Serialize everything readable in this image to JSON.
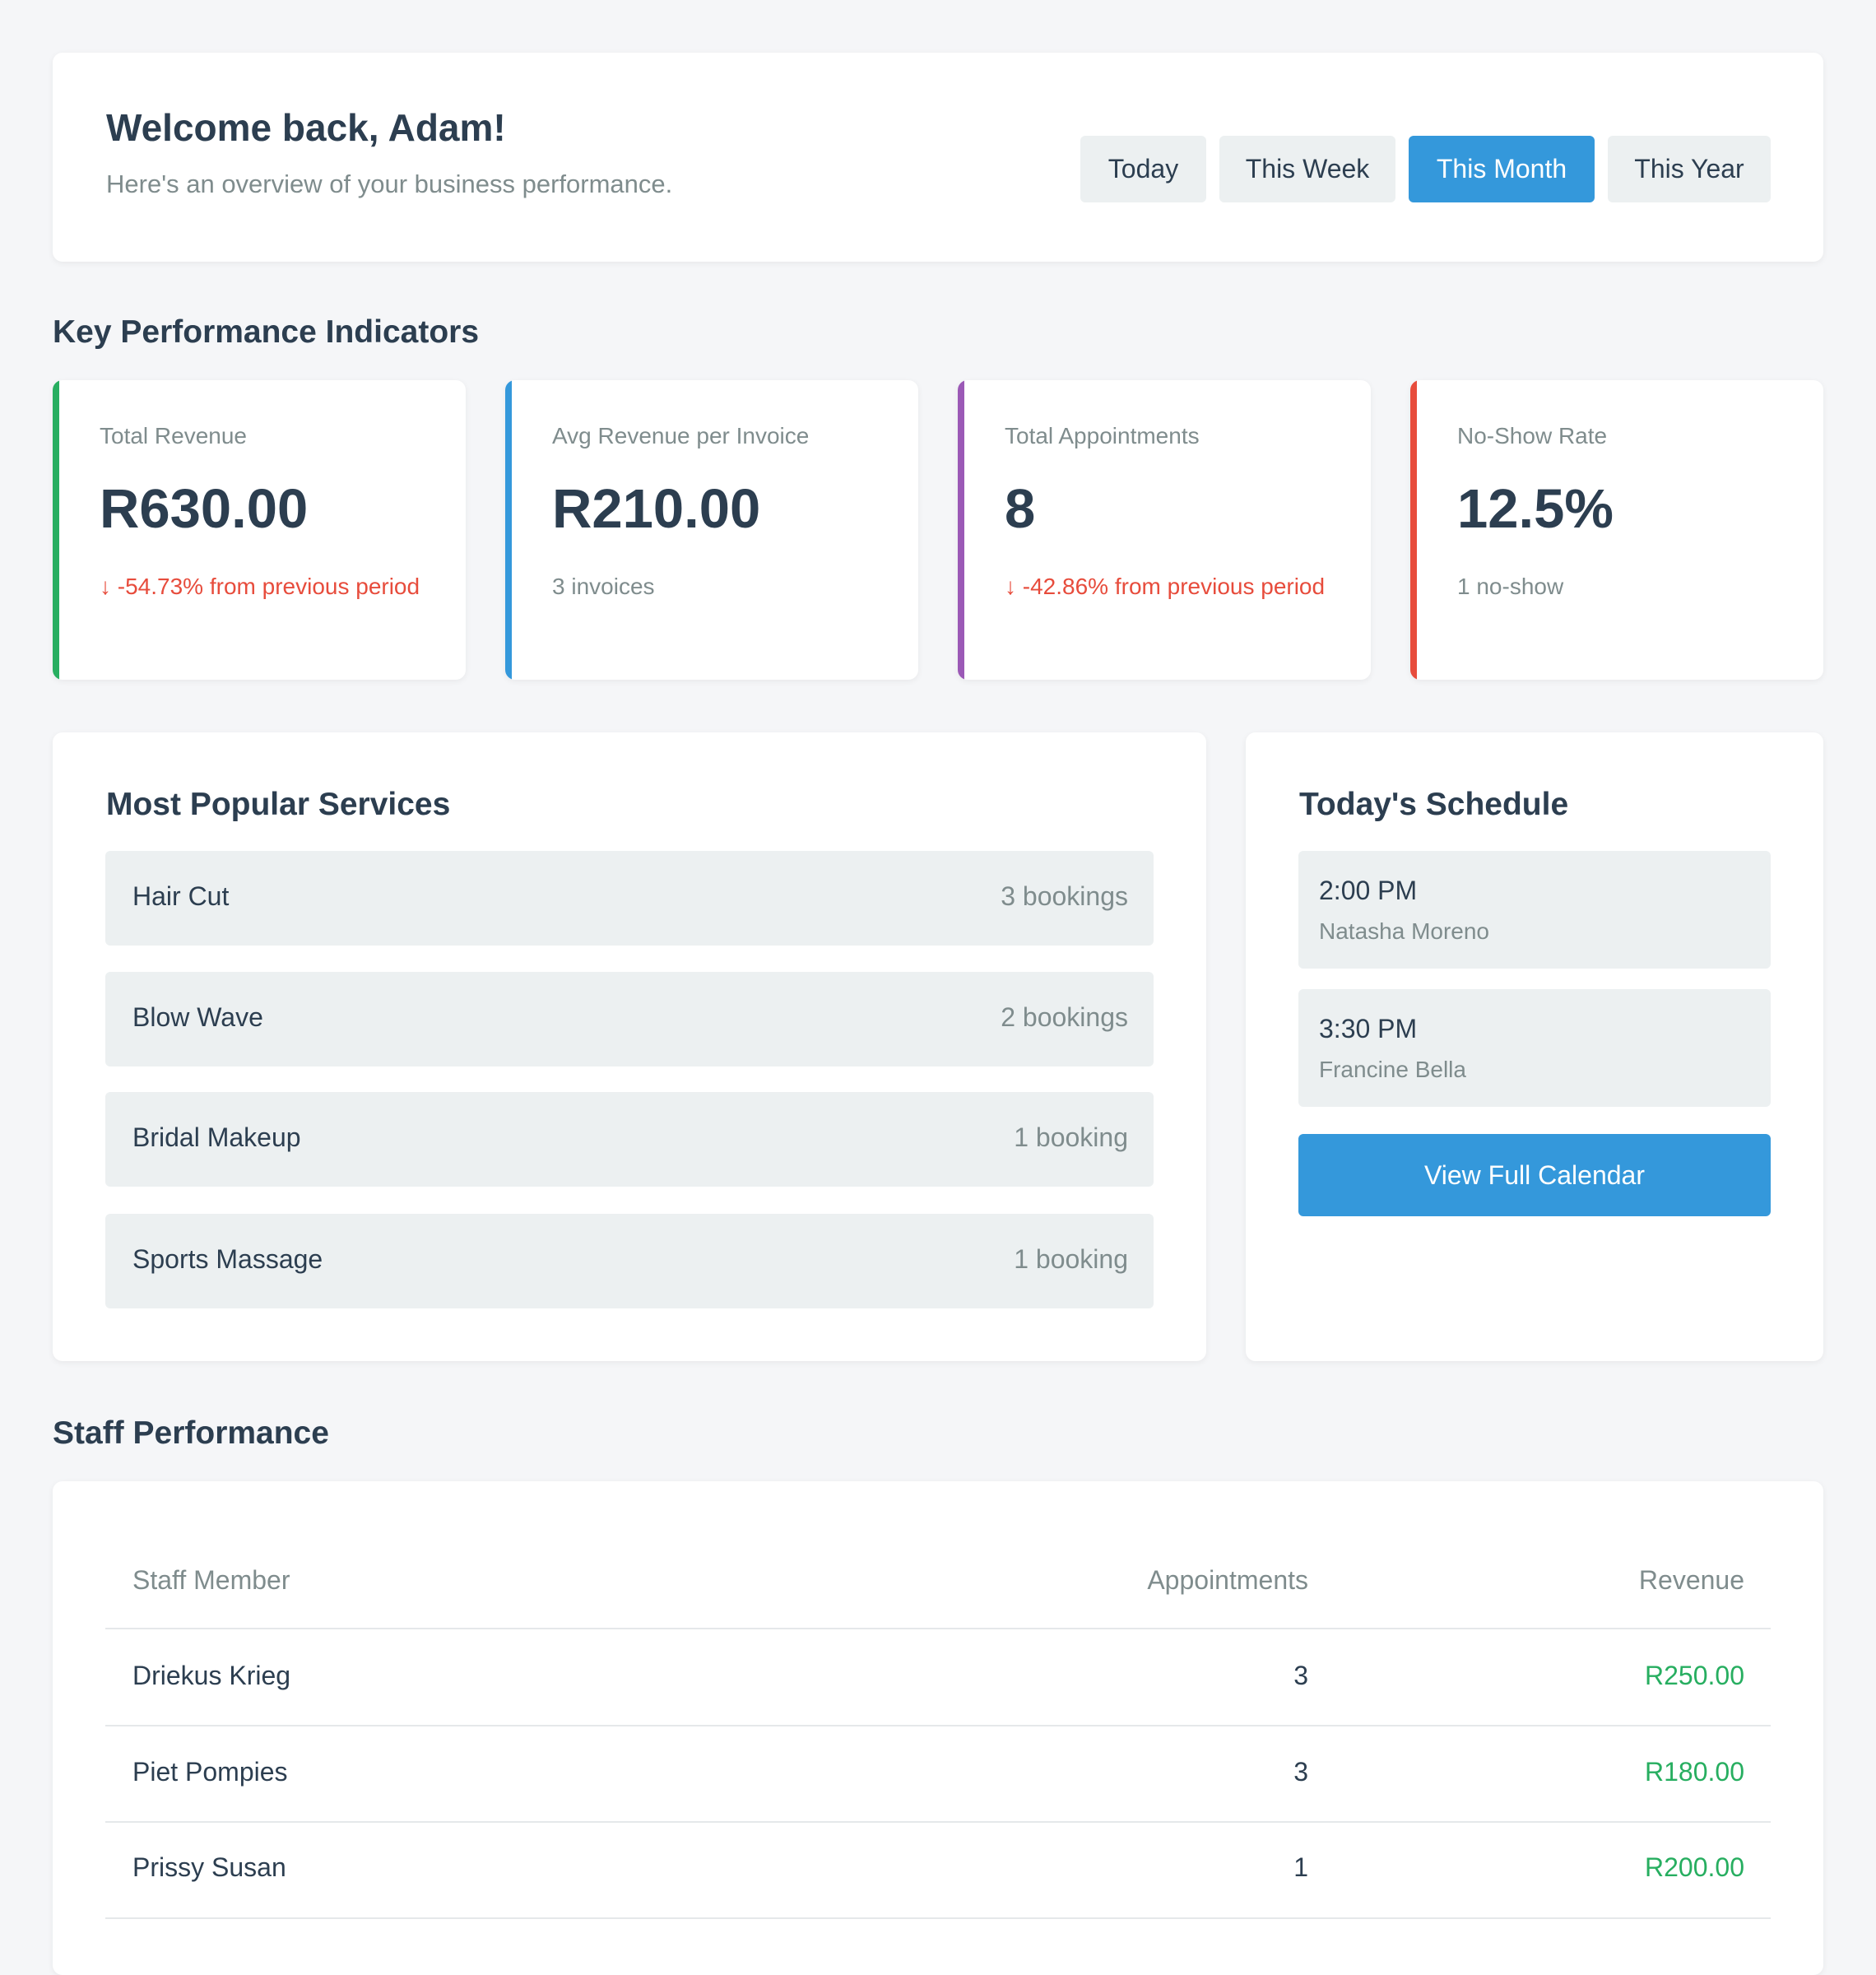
{
  "header": {
    "title": "Welcome back, Adam!",
    "subtitle": "Here's an overview of your business performance.",
    "periods": [
      "Today",
      "This Week",
      "This Month",
      "This Year"
    ],
    "active_period": "This Month"
  },
  "kpi_section": {
    "title": "Key Performance Indicators",
    "cards": [
      {
        "label": "Total Revenue",
        "value": "R630.00",
        "note": "↓ -54.73% from previous period",
        "accent": "#27ae60",
        "note_color": "#e74c3c"
      },
      {
        "label": "Avg Revenue per Invoice",
        "value": "R210.00",
        "note": "3 invoices",
        "accent": "#3498db",
        "note_color": "#7f8c8d"
      },
      {
        "label": "Total Appointments",
        "value": "8",
        "note": "↓ -42.86% from previous period",
        "accent": "#9b59b6",
        "note_color": "#e74c3c"
      },
      {
        "label": "No-Show Rate",
        "value": "12.5%",
        "note": "1 no-show",
        "accent": "#e74c3c",
        "note_color": "#7f8c8d"
      }
    ]
  },
  "services": {
    "title": "Most Popular Services",
    "items": [
      {
        "name": "Hair Cut",
        "count": "3 bookings"
      },
      {
        "name": "Blow Wave",
        "count": "2 bookings"
      },
      {
        "name": "Bridal Makeup",
        "count": "1 booking"
      },
      {
        "name": "Sports Massage",
        "count": "1 booking"
      }
    ]
  },
  "schedule": {
    "title": "Today's Schedule",
    "appointments": [
      {
        "time": "2:00 PM",
        "client": "Natasha Moreno"
      },
      {
        "time": "3:30 PM",
        "client": "Francine Bella"
      }
    ],
    "calendar_button": "View Full Calendar"
  },
  "staff": {
    "title": "Staff Performance",
    "columns": [
      "Staff Member",
      "Appointments",
      "Revenue"
    ],
    "rows": [
      {
        "name": "Driekus Krieg",
        "appointments": "3",
        "revenue": "R250.00"
      },
      {
        "name": "Piet Pompies",
        "appointments": "3",
        "revenue": "R180.00"
      },
      {
        "name": "Prissy Susan",
        "appointments": "1",
        "revenue": "R200.00"
      }
    ]
  },
  "colors": {
    "primary": "#3498db",
    "positive": "#27ae60",
    "negative": "#e74c3c",
    "muted": "#7f8c8d",
    "text": "#2c3e50",
    "panel": "#ecf0f1"
  }
}
